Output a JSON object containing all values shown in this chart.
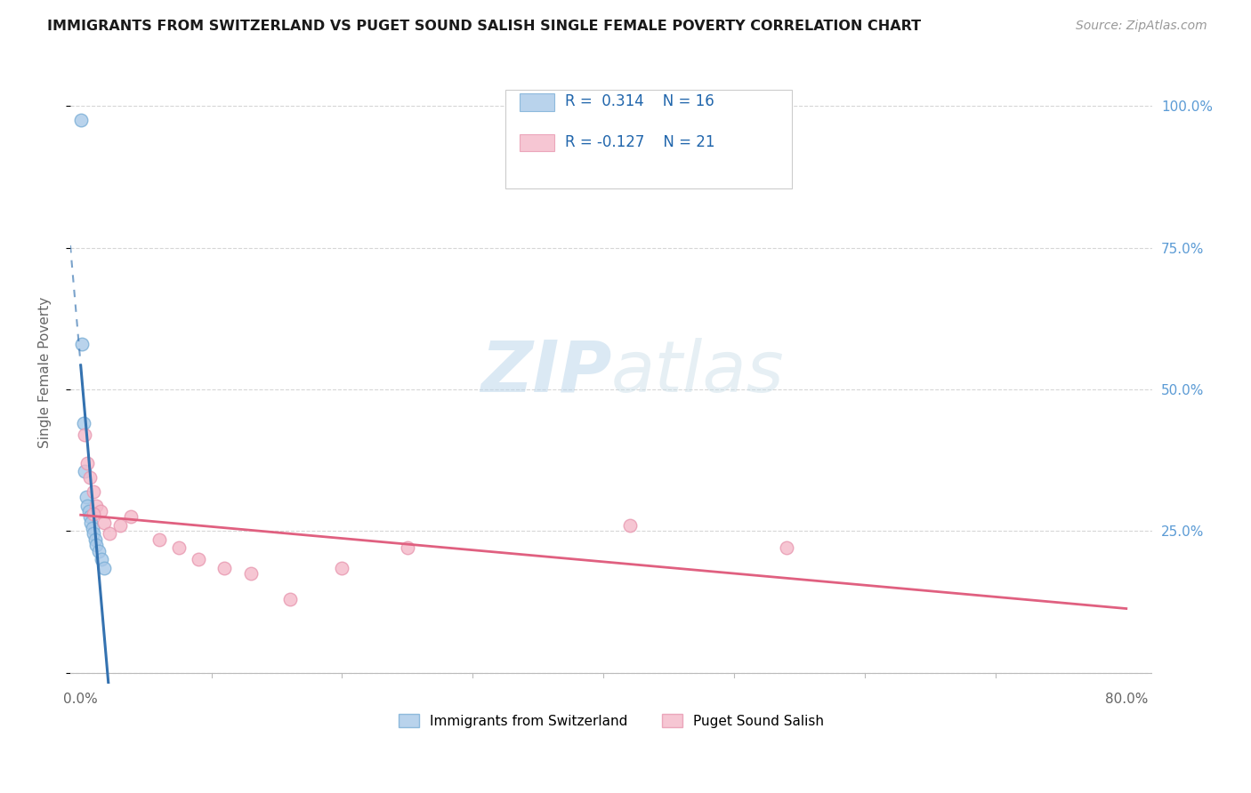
{
  "title": "IMMIGRANTS FROM SWITZERLAND VS PUGET SOUND SALISH SINGLE FEMALE POVERTY CORRELATION CHART",
  "source": "Source: ZipAtlas.com",
  "ylabel": "Single Female Poverty",
  "R1": 0.314,
  "N1": 16,
  "R2": -0.127,
  "N2": 21,
  "legend_label1": "Immigrants from Switzerland",
  "legend_label2": "Puget Sound Salish",
  "blue_fill": "#a8c8e8",
  "blue_edge": "#7bafd6",
  "blue_line": "#3472b0",
  "pink_fill": "#f4b8c8",
  "pink_edge": "#e898b0",
  "pink_line": "#e06080",
  "grid_color": "#cccccc",
  "bg_color": "#ffffff",
  "blue_x": [
    0.0,
    0.001,
    0.002,
    0.003,
    0.004,
    0.005,
    0.006,
    0.007,
    0.008,
    0.009,
    0.01,
    0.011,
    0.012,
    0.014,
    0.016,
    0.018
  ],
  "blue_y": [
    0.975,
    0.58,
    0.44,
    0.355,
    0.31,
    0.295,
    0.285,
    0.275,
    0.265,
    0.255,
    0.245,
    0.235,
    0.225,
    0.215,
    0.2,
    0.185
  ],
  "pink_x": [
    0.003,
    0.005,
    0.007,
    0.01,
    0.012,
    0.015,
    0.018,
    0.022,
    0.03,
    0.038,
    0.06,
    0.075,
    0.09,
    0.11,
    0.13,
    0.16,
    0.2,
    0.25,
    0.42,
    0.54,
    0.01
  ],
  "pink_y": [
    0.42,
    0.37,
    0.345,
    0.32,
    0.295,
    0.285,
    0.265,
    0.245,
    0.26,
    0.275,
    0.235,
    0.22,
    0.2,
    0.185,
    0.175,
    0.13,
    0.185,
    0.22,
    0.26,
    0.22,
    0.28
  ],
  "xlim": [
    -0.008,
    0.82
  ],
  "ylim": [
    -0.02,
    1.08
  ],
  "watermark_zip": "ZIP",
  "watermark_atlas": "atlas",
  "scatter_size": 110,
  "title_fontsize": 11.5,
  "source_fontsize": 10,
  "tick_fontsize": 11,
  "ylabel_fontsize": 11
}
